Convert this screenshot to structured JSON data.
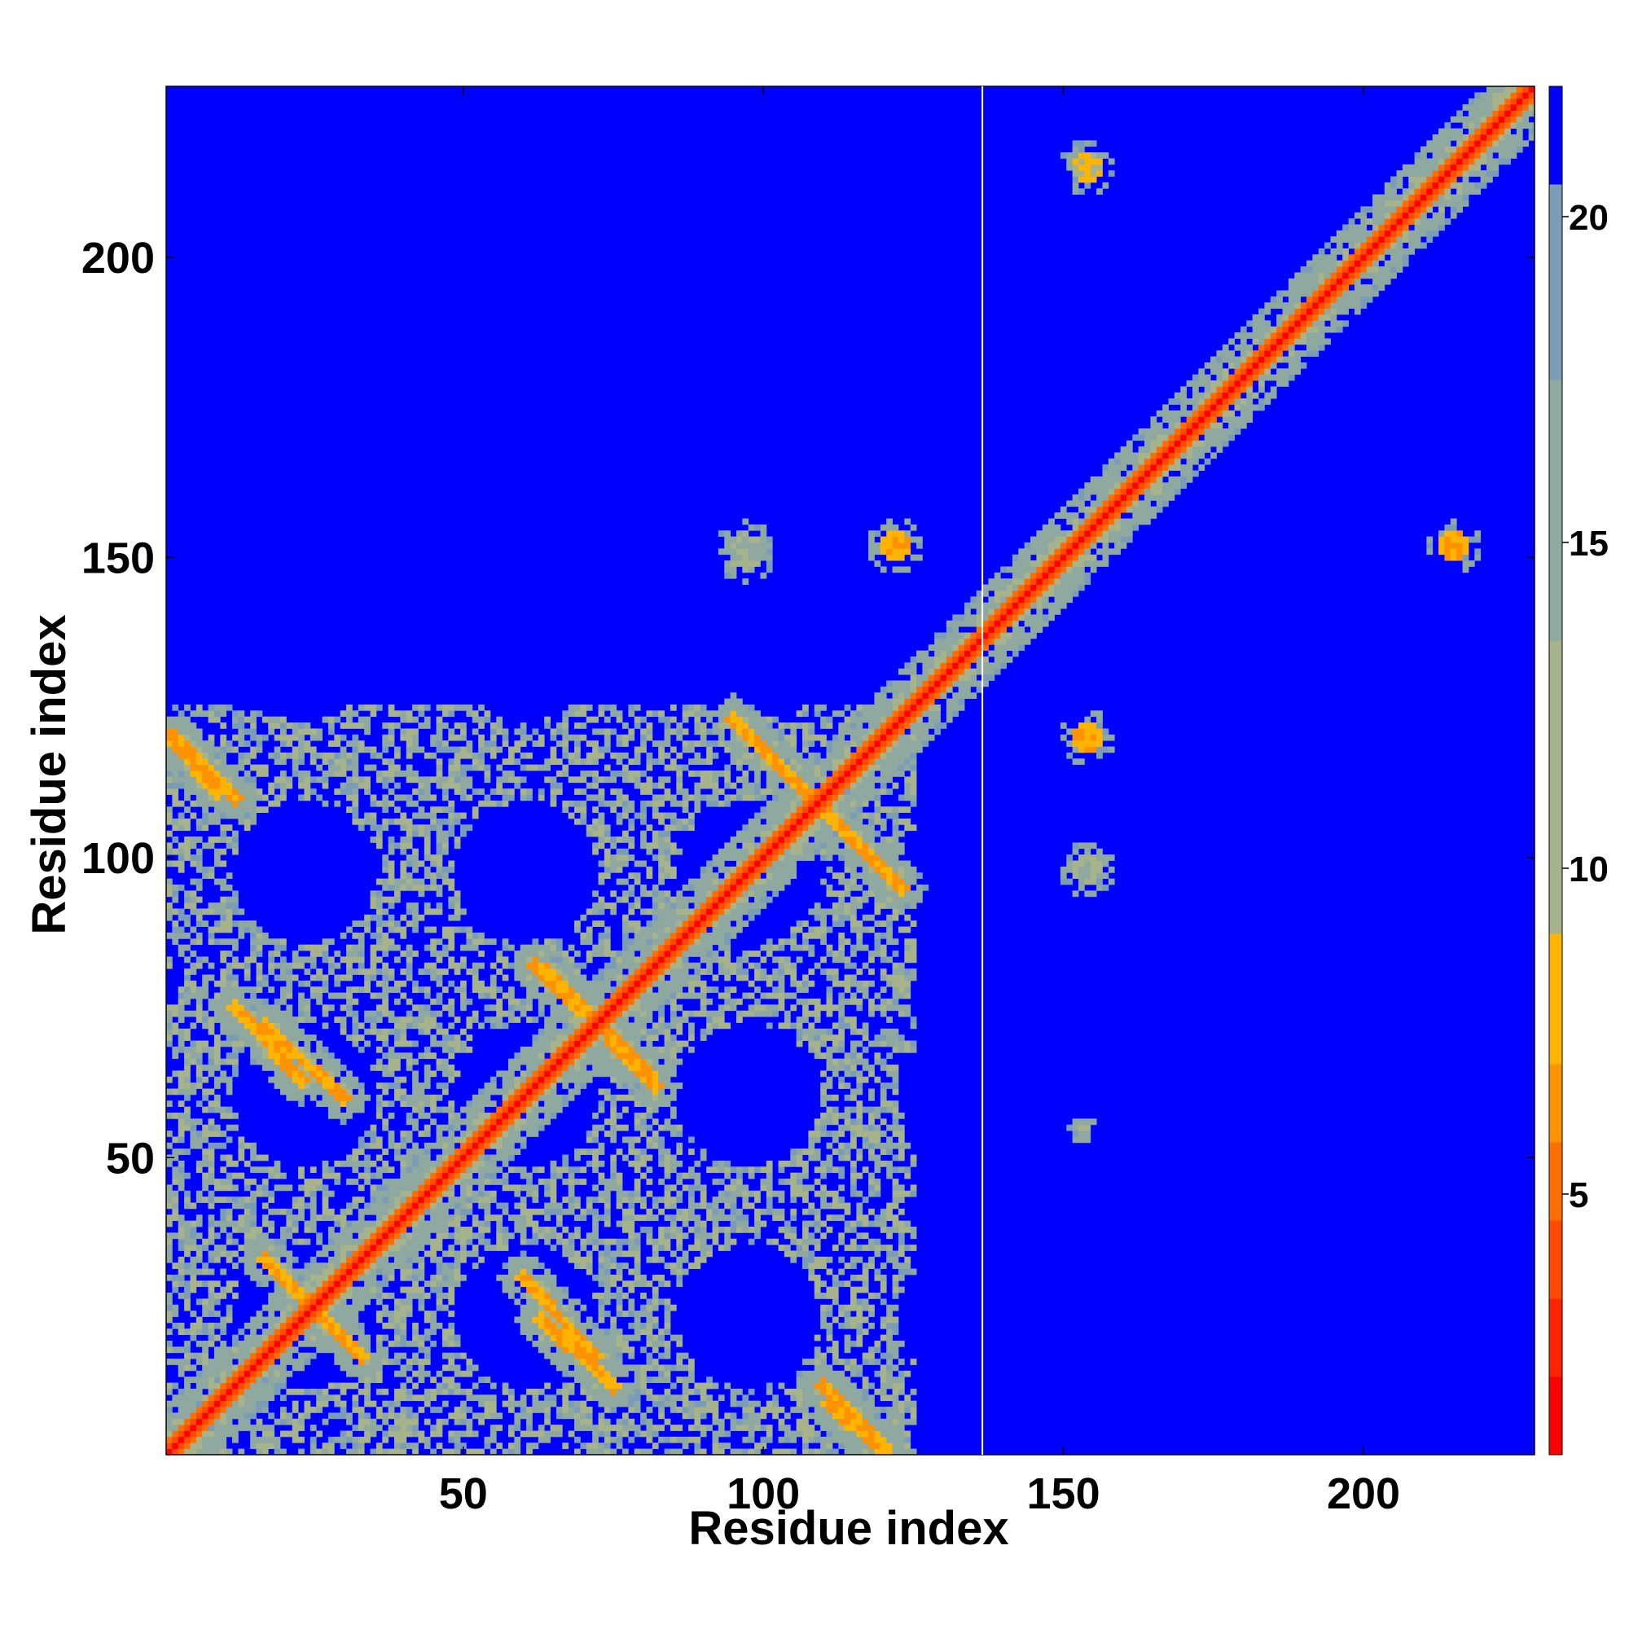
{
  "chart_data": {
    "type": "heatmap",
    "title": "",
    "xlabel": "Residue index",
    "ylabel": "Residue index",
    "n_residues": 228,
    "xlim": [
      1,
      228
    ],
    "ylim": [
      1,
      228
    ],
    "x_ticks": [
      50,
      100,
      150,
      200
    ],
    "y_ticks": [
      50,
      100,
      150,
      200
    ],
    "colorbar": {
      "range": [
        1,
        22
      ],
      "ticks": [
        5,
        10,
        15,
        20
      ],
      "colors": [
        "#ff0000",
        "#ff2400",
        "#ff4a00",
        "#ff6e00",
        "#ff9200",
        "#ffb400",
        "#a6b38b",
        "#8fa9a0",
        "#7b9cb6",
        "#0000ff"
      ],
      "break_values": [
        1,
        2.2,
        3.4,
        4.6,
        5.8,
        7,
        9,
        13.5,
        17.5,
        20.5,
        22
      ]
    },
    "chain_boundary_residue": 137,
    "description_features": {
      "main_diagonal": "contact (low value) along i=j",
      "far_value": 21,
      "features": [
        {
          "kind": "diag",
          "from": [
            1,
            1
          ],
          "to": [
            228,
            228
          ],
          "width": 1.6,
          "value": 1.5,
          "halo": 4.5,
          "halo_value": 11
        },
        {
          "kind": "anti",
          "from": [
            2,
            120
          ],
          "to": [
            12,
            110
          ],
          "width": 1.0,
          "value": 6,
          "halo": 3,
          "halo_value": 12
        },
        {
          "kind": "anti",
          "from": [
            95,
            123
          ],
          "to": [
            122,
            96
          ],
          "width": 1.0,
          "value": 6,
          "halo": 3,
          "halo_value": 12
        },
        {
          "kind": "anti",
          "from": [
            64,
            81
          ],
          "to": [
            82,
            62
          ],
          "width": 1.0,
          "value": 6,
          "halo": 3,
          "halo_value": 12
        },
        {
          "kind": "anti",
          "from": [
            17,
            72
          ],
          "to": [
            30,
            60
          ],
          "width": 1.0,
          "value": 6,
          "halo": 3,
          "halo_value": 12
        },
        {
          "kind": "anti",
          "from": [
            17,
            33
          ],
          "to": [
            33,
            17
          ],
          "width": 1.0,
          "value": 6,
          "halo": 3,
          "halo_value": 12
        },
        {
          "kind": "anti",
          "from": [
            63,
            23
          ],
          "to": [
            75,
            12
          ],
          "width": 1.0,
          "value": 6,
          "halo": 3,
          "halo_value": 12
        },
        {
          "kind": "anti",
          "from": [
            111,
            9
          ],
          "to": [
            120,
            1
          ],
          "width": 1.0,
          "value": 6,
          "halo": 3,
          "halo_value": 12
        },
        {
          "kind": "spot",
          "center": [
            154,
            215
          ],
          "radius": 2.5,
          "value": 7
        },
        {
          "kind": "spot",
          "center": [
            122,
            152
          ],
          "radius": 2.5,
          "value": 6
        },
        {
          "kind": "spot",
          "center": [
            154,
            120
          ],
          "radius": 2.5,
          "value": 6
        },
        {
          "kind": "spot",
          "center": [
            215,
            152
          ],
          "radius": 2.5,
          "value": 6
        },
        {
          "kind": "spot",
          "center": [
            97,
            151
          ],
          "radius": 3,
          "value": 12
        },
        {
          "kind": "spot",
          "center": [
            154,
            98
          ],
          "radius": 2.5,
          "value": 12
        },
        {
          "kind": "spot",
          "center": [
            153,
            55
          ],
          "radius": 1,
          "value": 12
        }
      ]
    }
  }
}
